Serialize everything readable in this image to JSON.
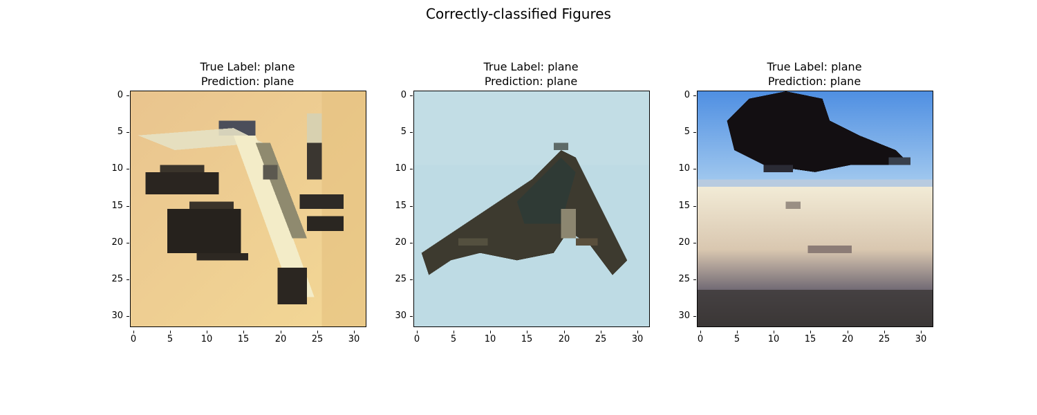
{
  "figure": {
    "title": "Correctly-classified Figures"
  },
  "chart_data": [
    {
      "type": "image",
      "title_line1": "True Label: plane",
      "title_line2": "Prediction: plane",
      "xlim": [
        -0.5,
        31.5
      ],
      "ylim": [
        31.5,
        -0.5
      ],
      "xticks": [
        "0",
        "5",
        "10",
        "15",
        "20",
        "25",
        "30"
      ],
      "yticks": [
        "0",
        "5",
        "10",
        "15",
        "20",
        "25",
        "30"
      ],
      "background_color": "#ecc990",
      "image": "sand-colored background with a dark-winged fighter jet, cream fuselage diagonal from upper-left to lower-right"
    },
    {
      "type": "image",
      "title_line1": "True Label: plane",
      "title_line2": "Prediction: plane",
      "xlim": [
        -0.5,
        31.5
      ],
      "ylim": [
        31.5,
        -0.5
      ],
      "xticks": [
        "0",
        "5",
        "10",
        "15",
        "20",
        "25",
        "30"
      ],
      "yticks": [
        "0",
        "5",
        "10",
        "15",
        "20",
        "25",
        "30"
      ],
      "background_color": "#bcdbe3",
      "image": "light blue sky with a dark triangular flying-wing aircraft"
    },
    {
      "type": "image",
      "title_line1": "True Label: plane",
      "title_line2": "Prediction: plane",
      "xlim": [
        -0.5,
        31.5
      ],
      "ylim": [
        31.5,
        -0.5
      ],
      "xticks": [
        "0",
        "5",
        "10",
        "15",
        "20",
        "25",
        "30"
      ],
      "yticks": [
        "0",
        "5",
        "10",
        "15",
        "20",
        "25",
        "30"
      ],
      "background_color": "#6aa9ee",
      "image": "blue sky with a dark aircraft silhouette above a pale hazy horizon and dark ground"
    }
  ]
}
